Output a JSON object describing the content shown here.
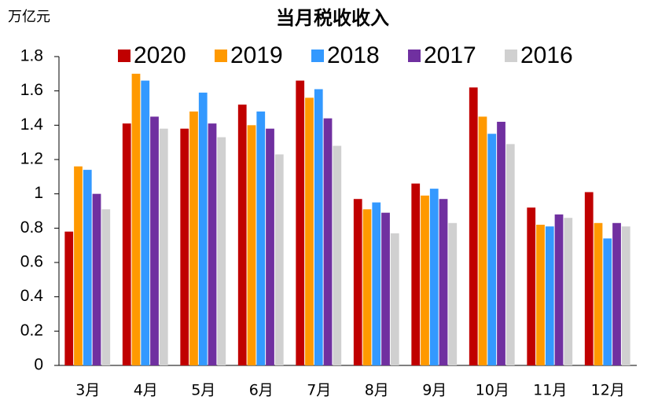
{
  "chart_data": {
    "type": "bar",
    "title": "当月税收收入",
    "y_label": "万亿元",
    "categories": [
      "3月",
      "4月",
      "5月",
      "6月",
      "7月",
      "8月",
      "9月",
      "10月",
      "11月",
      "12月"
    ],
    "series": [
      {
        "name": "2020",
        "color": "#c00000",
        "values": [
          0.78,
          1.41,
          1.38,
          1.52,
          1.66,
          0.97,
          1.06,
          1.62,
          0.92,
          1.01
        ]
      },
      {
        "name": "2019",
        "color": "#ff9900",
        "values": [
          1.16,
          1.7,
          1.48,
          1.4,
          1.56,
          0.91,
          0.99,
          1.45,
          0.82,
          0.83
        ]
      },
      {
        "name": "2018",
        "color": "#3399ff",
        "values": [
          1.14,
          1.66,
          1.59,
          1.48,
          1.61,
          0.95,
          1.03,
          1.35,
          0.81,
          0.74
        ]
      },
      {
        "name": "2017",
        "color": "#7030a0",
        "values": [
          1.0,
          1.45,
          1.41,
          1.38,
          1.44,
          0.89,
          0.97,
          1.42,
          0.88,
          0.83
        ]
      },
      {
        "name": "2016",
        "color": "#d0d0d0",
        "values": [
          0.91,
          1.38,
          1.33,
          1.23,
          1.28,
          0.77,
          0.83,
          1.29,
          0.86,
          0.81
        ]
      }
    ],
    "ylim": [
      0,
      1.8
    ],
    "yticks": [
      0,
      0.2,
      0.4,
      0.6,
      0.8,
      1,
      1.2,
      1.4,
      1.6,
      1.8
    ],
    "grid": false
  }
}
